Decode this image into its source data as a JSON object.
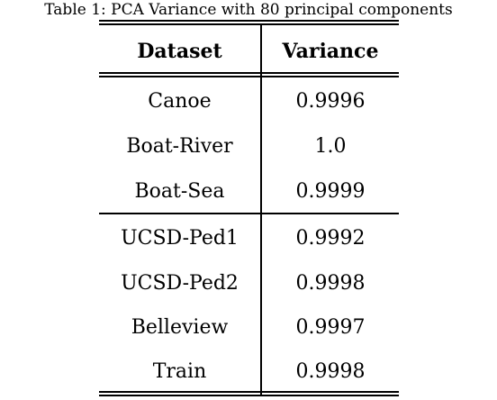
{
  "caption": "Table 1: PCA Variance with 80 principal components",
  "table": {
    "headers": [
      "Dataset",
      "Variance"
    ],
    "group1": [
      {
        "dataset": "Canoe",
        "variance": "0.9996"
      },
      {
        "dataset": "Boat-River",
        "variance": "1.0"
      },
      {
        "dataset": "Boat-Sea",
        "variance": "0.9999"
      }
    ],
    "group2": [
      {
        "dataset": "UCSD-Ped1",
        "variance": "0.9992"
      },
      {
        "dataset": "UCSD-Ped2",
        "variance": "0.9998"
      },
      {
        "dataset": "Belleview",
        "variance": "0.9997"
      },
      {
        "dataset": "Train",
        "variance": "0.9998"
      }
    ]
  }
}
